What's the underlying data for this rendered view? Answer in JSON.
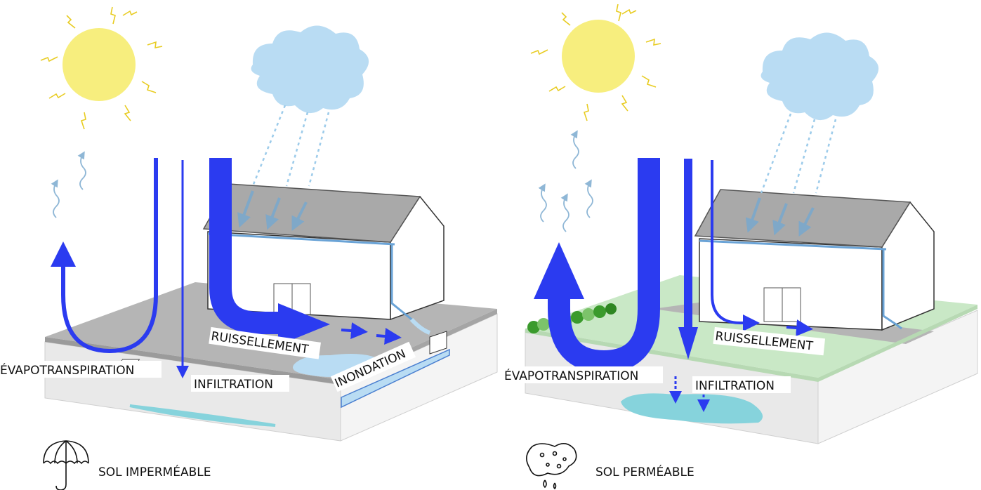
{
  "left_panel": {
    "labels": {
      "evapotranspiration": "ÉVAPOTRANSPIRATION",
      "infiltration": "INFILTRATION",
      "ruissellement": "RUISSELLEMENT",
      "inondation": "INONDATION"
    },
    "caption": "SOL IMPERMÉABLE",
    "caption_icon": "umbrella-icon"
  },
  "right_panel": {
    "labels": {
      "evapotranspiration": "ÉVAPOTRANSPIRATION",
      "infiltration": "INFILTRATION",
      "ruissellement": "RUISSELLEMENT"
    },
    "caption": "SOL PERMÉABLE",
    "caption_icon": "sponge-icon"
  },
  "colors": {
    "sun": "#f7ee7e",
    "sun_rays": "#e8cc22",
    "cloud": "#b9dcf3",
    "rain": "#9ccbea",
    "flow_arrow": "#2b3bf0",
    "vapor": "#8fb7d6",
    "water": "#86d3dc",
    "pavement_top": "#b3b3b3",
    "soil_side": "#e6e6e6",
    "grass": "#c9e8c6",
    "roof": "#a9a9a9",
    "hedge": "#3a9a2c"
  }
}
